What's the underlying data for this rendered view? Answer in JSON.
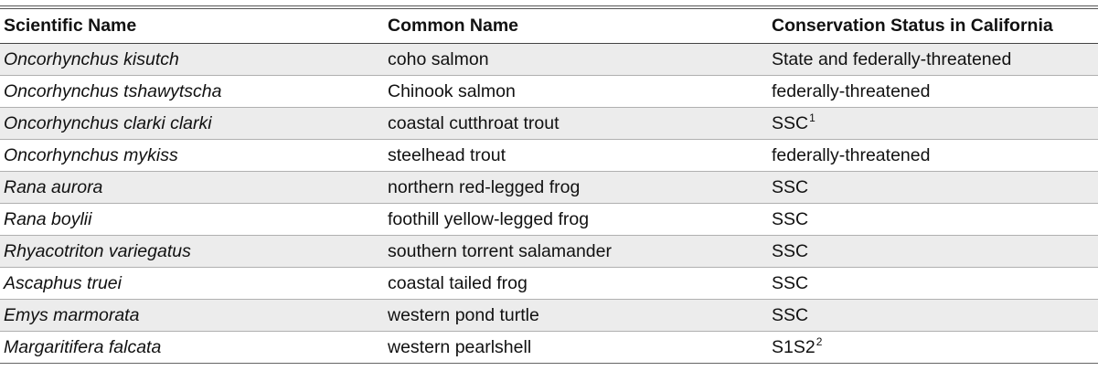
{
  "table": {
    "headers": {
      "scientific_name": "Scientific Name",
      "common_name": "Common Name",
      "conservation_status": "Conservation Status in California"
    },
    "rows": [
      {
        "scientific_name": "Oncorhynchus kisutch",
        "common_name": "coho salmon",
        "status": "State and federally-threatened",
        "footnote": ""
      },
      {
        "scientific_name": "Oncorhynchus tshawytscha",
        "common_name": "Chinook salmon",
        "status": "federally-threatened",
        "footnote": ""
      },
      {
        "scientific_name": "Oncorhynchus clarki clarki",
        "common_name": "coastal cutthroat trout",
        "status": "SSC",
        "footnote": "1"
      },
      {
        "scientific_name": "Oncorhynchus mykiss",
        "common_name": "steelhead trout",
        "status": "federally-threatened",
        "footnote": ""
      },
      {
        "scientific_name": "Rana aurora",
        "common_name": "northern red-legged frog",
        "status": "SSC",
        "footnote": ""
      },
      {
        "scientific_name": "Rana boylii",
        "common_name": "foothill yellow-legged frog",
        "status": "SSC",
        "footnote": ""
      },
      {
        "scientific_name": "Rhyacotriton variegatus",
        "common_name": "southern torrent salamander",
        "status": "SSC",
        "footnote": ""
      },
      {
        "scientific_name": "Ascaphus truei",
        "common_name": "coastal tailed frog",
        "status": "SSC",
        "footnote": ""
      },
      {
        "scientific_name": "Emys marmorata",
        "common_name": "western pond turtle",
        "status": "SSC",
        "footnote": ""
      },
      {
        "scientific_name": "Margaritifera falcata",
        "common_name": "western pearlshell",
        "status": "S1S2",
        "footnote": "2"
      }
    ]
  }
}
